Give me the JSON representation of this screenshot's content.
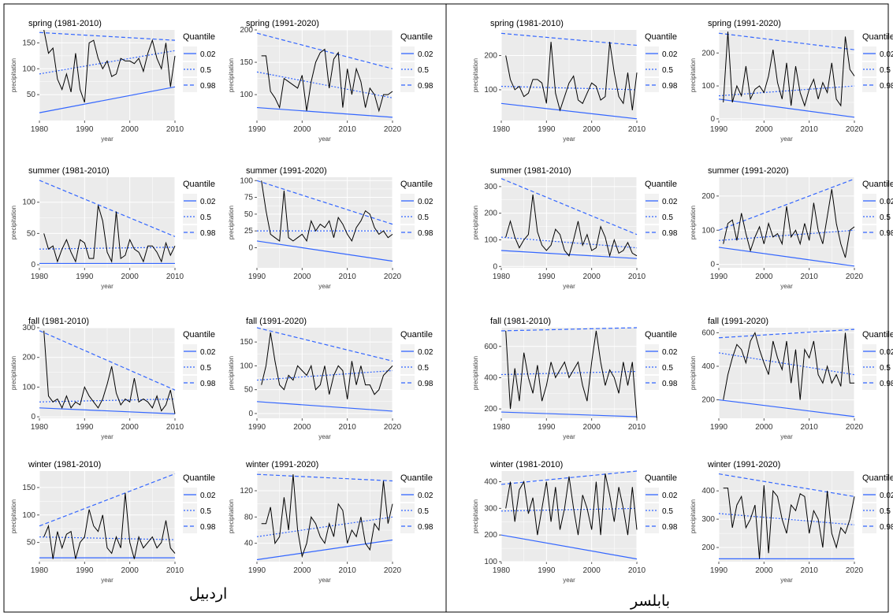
{
  "stations": [
    {
      "name": "اردبیل"
    },
    {
      "name": "بابلسر"
    }
  ],
  "legend": {
    "title": "Quantile",
    "entries": [
      "0.02",
      "0.5",
      "0.98"
    ]
  },
  "colors": {
    "panel_bg": "#ebebeb",
    "grid": "#ffffff",
    "series": "#000000",
    "quantile_lines": "#3366ff",
    "frame": "#000000"
  },
  "chart_data": [
    {
      "station": "اردبیل",
      "type": "line",
      "title": "spring (1981-2010)",
      "xlabel": "year",
      "ylabel": "precipitation",
      "xlim": [
        1980,
        2010
      ],
      "ylim": [
        0,
        175
      ],
      "xticks": [
        1980,
        1990,
        2000,
        2010
      ],
      "yticks": [
        50,
        100,
        150
      ],
      "series": [
        {
          "values": [
            175,
            130,
            140,
            80,
            60,
            90,
            55,
            130,
            60,
            35,
            150,
            155,
            120,
            100,
            115,
            85,
            90,
            120,
            115,
            115,
            110,
            120,
            95,
            130,
            155,
            120,
            100,
            150,
            65,
            125
          ]
        }
      ],
      "quantile_lines": {
        "0.02": [
          15,
          65
        ],
        "0.5": [
          90,
          135
        ],
        "0.98": [
          170,
          155
        ]
      }
    },
    {
      "station": "اردبیل",
      "type": "line",
      "title": "spring (1991-2020)",
      "xlabel": "year",
      "ylabel": "precipitation",
      "xlim": [
        1990,
        2020
      ],
      "ylim": [
        60,
        200
      ],
      "xticks": [
        1990,
        2000,
        2010,
        2020
      ],
      "yticks": [
        100,
        150,
        200
      ],
      "series": [
        {
          "values": [
            160,
            160,
            105,
            95,
            80,
            125,
            120,
            115,
            110,
            130,
            75,
            120,
            150,
            165,
            170,
            110,
            155,
            165,
            80,
            140,
            100,
            140,
            120,
            80,
            110,
            100,
            75,
            100,
            100,
            105
          ]
        }
      ],
      "quantile_lines": {
        "0.02": [
          80,
          65
        ],
        "0.5": [
          135,
          95
        ],
        "0.98": [
          195,
          140
        ]
      }
    },
    {
      "station": "اردبیل",
      "type": "line",
      "title": "summer (1981-2010)",
      "xlabel": "year",
      "ylabel": "precipitation",
      "xlim": [
        1980,
        2010
      ],
      "ylim": [
        -5,
        140
      ],
      "xticks": [
        1980,
        1990,
        2000,
        2010
      ],
      "yticks": [
        0,
        50,
        100
      ],
      "series": [
        {
          "values": [
            50,
            25,
            30,
            5,
            25,
            40,
            20,
            5,
            40,
            35,
            10,
            10,
            95,
            70,
            20,
            5,
            85,
            10,
            15,
            40,
            25,
            20,
            5,
            30,
            30,
            20,
            5,
            35,
            15,
            30
          ]
        }
      ],
      "quantile_lines": {
        "0.02": [
          2,
          2
        ],
        "0.5": [
          25,
          28
        ],
        "0.98": [
          135,
          45
        ]
      }
    },
    {
      "station": "اردبیل",
      "type": "line",
      "title": "summer (1991-2020)",
      "xlabel": "year",
      "ylabel": "precipitation",
      "xlim": [
        1990,
        2020
      ],
      "ylim": [
        -30,
        105
      ],
      "xticks": [
        1990,
        2000,
        2010,
        2020
      ],
      "yticks": [
        0,
        25,
        50,
        75,
        100
      ],
      "series": [
        {
          "values": [
            100,
            55,
            20,
            15,
            10,
            85,
            15,
            10,
            15,
            20,
            10,
            40,
            25,
            35,
            30,
            40,
            15,
            45,
            35,
            20,
            10,
            30,
            40,
            55,
            50,
            30,
            20,
            25,
            15,
            20
          ]
        }
      ],
      "quantile_lines": {
        "0.02": [
          10,
          -20
        ],
        "0.5": [
          25,
          25
        ],
        "0.98": [
          100,
          35
        ]
      }
    },
    {
      "station": "اردبیل",
      "type": "line",
      "title": "fall (1981-2010)",
      "xlabel": "year",
      "ylabel": "precipitation",
      "xlim": [
        1980,
        2010
      ],
      "ylim": [
        -5,
        300
      ],
      "xticks": [
        1980,
        1990,
        2000,
        2010
      ],
      "yticks": [
        0,
        100,
        200,
        300
      ],
      "series": [
        {
          "values": [
            290,
            70,
            50,
            60,
            30,
            70,
            30,
            50,
            40,
            100,
            70,
            50,
            30,
            60,
            110,
            170,
            80,
            40,
            60,
            50,
            130,
            50,
            60,
            50,
            30,
            70,
            20,
            40,
            90,
            10
          ]
        }
      ],
      "quantile_lines": {
        "0.02": [
          30,
          10
        ],
        "0.5": [
          50,
          60
        ],
        "0.98": [
          290,
          90
        ]
      }
    },
    {
      "station": "اردبیل",
      "type": "line",
      "title": "fall (1991-2020)",
      "xlabel": "year",
      "ylabel": "precipitation",
      "xlim": [
        1990,
        2020
      ],
      "ylim": [
        -10,
        180
      ],
      "xticks": [
        1990,
        2000,
        2010,
        2020
      ],
      "yticks": [
        0,
        50,
        100,
        150
      ],
      "series": [
        {
          "values": [
            60,
            100,
            170,
            110,
            60,
            50,
            80,
            70,
            100,
            90,
            80,
            100,
            50,
            60,
            100,
            40,
            80,
            100,
            90,
            30,
            110,
            60,
            100,
            60,
            60,
            40,
            50,
            80,
            90,
            100
          ]
        }
      ],
      "quantile_lines": {
        "0.02": [
          25,
          5
        ],
        "0.5": [
          70,
          90
        ],
        "0.98": [
          180,
          110
        ]
      }
    },
    {
      "station": "اردبیل",
      "type": "line",
      "title": "winter (1981-2010)",
      "xlabel": "year",
      "ylabel": "precipitation",
      "xlim": [
        1980,
        2010
      ],
      "ylim": [
        15,
        180
      ],
      "xticks": [
        1980,
        1990,
        2000,
        2010
      ],
      "yticks": [
        50,
        100,
        150
      ],
      "series": [
        {
          "values": [
            60,
            80,
            20,
            70,
            40,
            65,
            70,
            20,
            50,
            60,
            110,
            80,
            70,
            100,
            40,
            30,
            60,
            40,
            140,
            50,
            20,
            60,
            40,
            50,
            60,
            40,
            50,
            90,
            40,
            30
          ]
        }
      ],
      "quantile_lines": {
        "0.02": [
          22,
          22
        ],
        "0.5": [
          60,
          55
        ],
        "0.98": [
          80,
          175
        ]
      }
    },
    {
      "station": "اردبیل",
      "type": "line",
      "title": "winter (1991-2020)",
      "xlabel": "year",
      "ylabel": "precipitation",
      "xlim": [
        1990,
        2020
      ],
      "ylim": [
        12,
        150
      ],
      "xticks": [
        1990,
        2000,
        2010,
        2020
      ],
      "yticks": [
        40,
        80,
        120
      ],
      "series": [
        {
          "values": [
            70,
            70,
            95,
            40,
            50,
            110,
            60,
            145,
            60,
            20,
            40,
            80,
            70,
            50,
            40,
            70,
            50,
            100,
            90,
            40,
            60,
            50,
            80,
            40,
            30,
            70,
            60,
            135,
            70,
            100
          ]
        }
      ],
      "quantile_lines": {
        "0.02": [
          15,
          45
        ],
        "0.5": [
          50,
          80
        ],
        "0.98": [
          145,
          135
        ]
      }
    },
    {
      "station": "بابلسر",
      "type": "line",
      "title": "spring (1981-2010)",
      "xlabel": "year",
      "ylabel": "precipitation",
      "xlim": [
        1980,
        2010
      ],
      "ylim": [
        10,
        275
      ],
      "xticks": [
        1980,
        1990,
        2000,
        2010
      ],
      "yticks": [
        100,
        200
      ],
      "series": [
        {
          "values": [
            200,
            130,
            100,
            110,
            80,
            90,
            130,
            130,
            120,
            60,
            240,
            90,
            40,
            80,
            120,
            140,
            70,
            60,
            90,
            120,
            110,
            70,
            80,
            240,
            150,
            80,
            60,
            150,
            40,
            150
          ]
        }
      ],
      "quantile_lines": {
        "0.02": [
          60,
          15
        ],
        "0.5": [
          110,
          100
        ],
        "0.98": [
          265,
          230
        ]
      }
    },
    {
      "station": "بابلسر",
      "type": "line",
      "title": "spring (1991-2020)",
      "xlabel": "year",
      "ylabel": "precipitation",
      "xlim": [
        1990,
        2020
      ],
      "ylim": [
        -5,
        270
      ],
      "xticks": [
        1990,
        2000,
        2010,
        2020
      ],
      "yticks": [
        0,
        100,
        200
      ],
      "series": [
        {
          "values": [
            50,
            265,
            50,
            100,
            70,
            160,
            60,
            90,
            100,
            80,
            130,
            210,
            110,
            60,
            170,
            40,
            160,
            80,
            40,
            90,
            120,
            60,
            110,
            80,
            170,
            60,
            40,
            250,
            150,
            130
          ]
        }
      ],
      "quantile_lines": {
        "0.02": [
          60,
          5
        ],
        "0.5": [
          70,
          100
        ],
        "0.98": [
          260,
          210
        ]
      }
    },
    {
      "station": "بابلسر",
      "type": "line",
      "title": "summer (1981-2010)",
      "xlabel": "year",
      "ylabel": "precipitation",
      "xlim": [
        1980,
        2010
      ],
      "ylim": [
        -5,
        335
      ],
      "xticks": [
        1980,
        1990,
        2000,
        2010
      ],
      "yticks": [
        0,
        100,
        200,
        300
      ],
      "series": [
        {
          "values": [
            110,
            170,
            110,
            70,
            100,
            120,
            270,
            130,
            80,
            60,
            80,
            140,
            120,
            60,
            40,
            100,
            170,
            80,
            120,
            60,
            70,
            150,
            110,
            40,
            100,
            50,
            60,
            90,
            50,
            40
          ]
        }
      ],
      "quantile_lines": {
        "0.02": [
          60,
          30
        ],
        "0.5": [
          110,
          70
        ],
        "0.98": [
          330,
          120
        ]
      }
    },
    {
      "station": "بابلسر",
      "type": "line",
      "title": "summer (1991-2020)",
      "xlabel": "year",
      "ylabel": "precipitation",
      "xlim": [
        1990,
        2020
      ],
      "ylim": [
        -10,
        255
      ],
      "xticks": [
        1990,
        2000,
        2010,
        2020
      ],
      "yticks": [
        0,
        100,
        200
      ],
      "series": [
        {
          "values": [
            60,
            120,
            130,
            70,
            150,
            90,
            40,
            80,
            110,
            60,
            120,
            80,
            90,
            60,
            170,
            80,
            100,
            60,
            120,
            70,
            180,
            100,
            60,
            140,
            220,
            120,
            60,
            20,
            100,
            110
          ]
        }
      ],
      "quantile_lines": {
        "0.02": [
          50,
          -5
        ],
        "0.5": [
          70,
          100
        ],
        "0.98": [
          100,
          250
        ]
      }
    },
    {
      "station": "بابلسر",
      "type": "line",
      "title": "fall (1981-2010)",
      "xlabel": "year",
      "ylabel": "precipitation",
      "xlim": [
        1980,
        2010
      ],
      "ylim": [
        140,
        720
      ],
      "xticks": [
        1980,
        1990,
        2000,
        2010
      ],
      "yticks": [
        200,
        400,
        600
      ],
      "series": [
        {
          "values": [
            700,
            200,
            460,
            250,
            560,
            400,
            300,
            480,
            250,
            350,
            500,
            400,
            450,
            500,
            400,
            450,
            500,
            350,
            250,
            500,
            700,
            500,
            350,
            450,
            400,
            300,
            500,
            350,
            500,
            140
          ]
        }
      ],
      "quantile_lines": {
        "0.02": [
          180,
          150
        ],
        "0.5": [
          420,
          440
        ],
        "0.98": [
          700,
          720
        ]
      }
    },
    {
      "station": "بابلسر",
      "type": "line",
      "title": "fall (1991-2020)",
      "xlabel": "year",
      "ylabel": "precipitation",
      "xlim": [
        1990,
        2020
      ],
      "ylim": [
        90,
        630
      ],
      "xticks": [
        1990,
        2000,
        2010,
        2020
      ],
      "yticks": [
        200,
        400,
        600
      ],
      "series": [
        {
          "values": [
            200,
            350,
            450,
            530,
            500,
            420,
            550,
            600,
            500,
            420,
            350,
            550,
            450,
            380,
            550,
            300,
            500,
            200,
            500,
            450,
            550,
            350,
            300,
            400,
            300,
            350,
            280,
            600,
            300,
            300
          ]
        }
      ],
      "quantile_lines": {
        "0.02": [
          200,
          100
        ],
        "0.5": [
          480,
          350
        ],
        "0.98": [
          570,
          620
        ]
      }
    },
    {
      "station": "بابلسر",
      "type": "line",
      "title": "winter (1981-2010)",
      "xlabel": "year",
      "ylabel": "precipitation",
      "xlim": [
        1980,
        2010
      ],
      "ylim": [
        100,
        440
      ],
      "xticks": [
        1980,
        1990,
        2000,
        2010
      ],
      "yticks": [
        100,
        200,
        300,
        400
      ],
      "series": [
        {
          "values": [
            300,
            400,
            250,
            370,
            400,
            280,
            340,
            200,
            300,
            400,
            250,
            380,
            220,
            300,
            420,
            300,
            200,
            350,
            300,
            220,
            400,
            200,
            430,
            350,
            250,
            380,
            300,
            200,
            380,
            220
          ]
        }
      ],
      "quantile_lines": {
        "0.02": [
          200,
          110
        ],
        "0.5": [
          290,
          300
        ],
        "0.98": [
          390,
          440
        ]
      }
    },
    {
      "station": "بابلسر",
      "type": "line",
      "title": "winter (1991-2020)",
      "xlabel": "year",
      "ylabel": "precipitation",
      "xlim": [
        1990,
        2020
      ],
      "ylim": [
        150,
        470
      ],
      "xticks": [
        1990,
        2000,
        2010,
        2020
      ],
      "yticks": [
        200,
        300,
        400
      ],
      "series": [
        {
          "values": [
            410,
            410,
            270,
            350,
            380,
            270,
            300,
            350,
            160,
            420,
            180,
            400,
            380,
            300,
            250,
            350,
            330,
            390,
            380,
            250,
            330,
            300,
            200,
            400,
            250,
            200,
            270,
            250,
            300,
            380
          ]
        }
      ],
      "quantile_lines": {
        "0.02": [
          160,
          160
        ],
        "0.5": [
          320,
          280
        ],
        "0.98": [
          460,
          380
        ]
      }
    }
  ]
}
